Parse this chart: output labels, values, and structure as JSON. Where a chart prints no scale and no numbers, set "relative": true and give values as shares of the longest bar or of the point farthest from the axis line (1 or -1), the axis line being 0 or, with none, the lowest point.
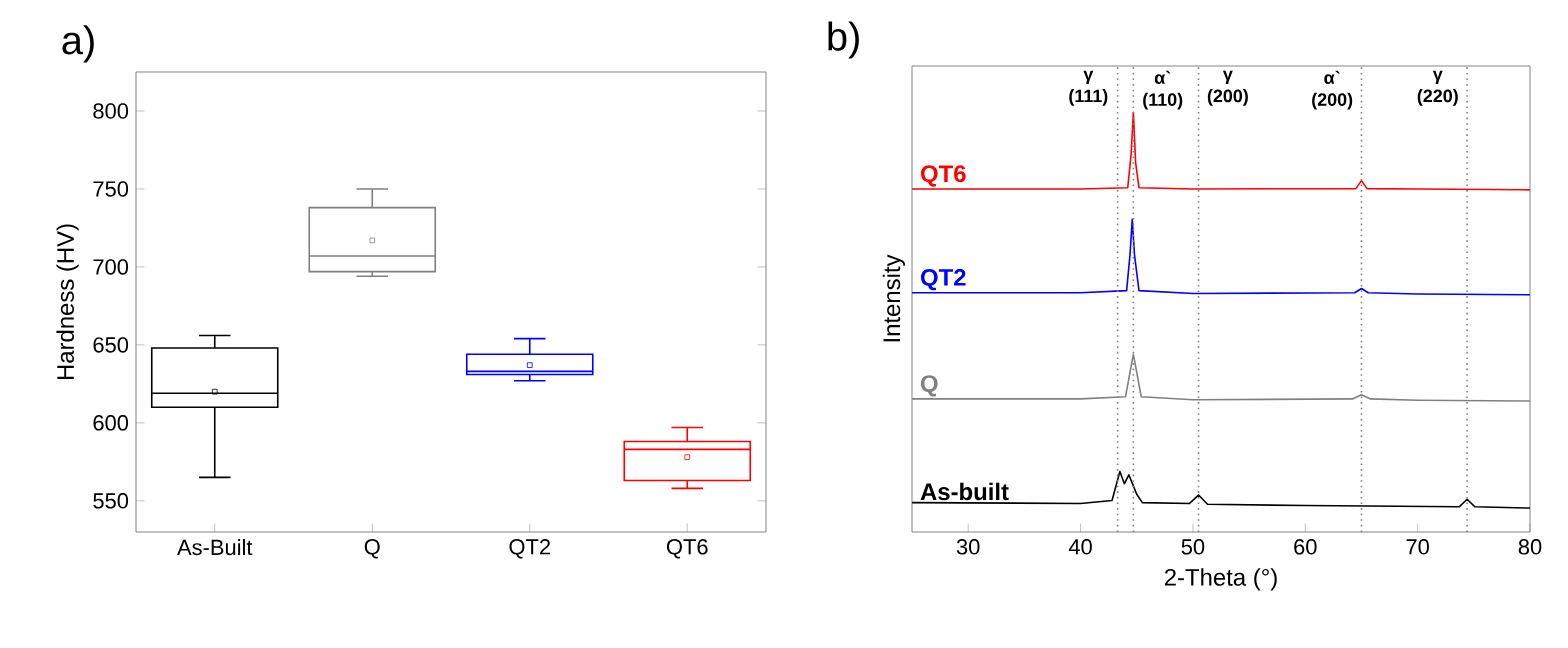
{
  "chart_data": [
    {
      "type": "box",
      "ylabel": "Hardness (HV)",
      "annotations": [
        "a)"
      ],
      "categories": [
        "As-Built",
        "Q",
        "QT2",
        "QT6"
      ],
      "colors": [
        "#000000",
        "#808080",
        "#0000ff",
        "#ff0000"
      ],
      "boxes": [
        {
          "low": 565,
          "q1": 610,
          "median": 619,
          "q3": 648,
          "high": 656,
          "mean": 620
        },
        {
          "low": 694,
          "q1": 697,
          "median": 707,
          "q3": 738,
          "high": 750,
          "mean": 717
        },
        {
          "low": 627,
          "q1": 631,
          "median": 633,
          "q3": 644,
          "high": 654,
          "mean": 637
        },
        {
          "low": 558,
          "q1": 563,
          "median": 583,
          "q3": 588,
          "high": 597,
          "mean": 578
        }
      ],
      "ylim": [
        530,
        825
      ],
      "yticks": [
        550,
        600,
        650,
        700,
        750,
        800
      ]
    },
    {
      "type": "line",
      "xlabel": "2-Theta (°)",
      "ylabel": "Intensity",
      "annotations": [
        "b)"
      ],
      "relative": true,
      "xlim": [
        25,
        80
      ],
      "xticks": [
        30,
        40,
        50,
        60,
        70,
        80
      ],
      "marker": "none",
      "line_style": "solid",
      "series": [
        {
          "name": "QT6",
          "color": "#ff0000",
          "x": [
            25,
            40,
            44.2,
            44.5,
            44.7,
            44.9,
            45.2,
            50,
            64.5,
            65,
            65.5,
            70,
            80
          ],
          "values": [
            0.817,
            0.817,
            0.82,
            0.9,
            1.0,
            0.88,
            0.82,
            0.817,
            0.818,
            0.837,
            0.818,
            0.817,
            0.815
          ]
        },
        {
          "name": "QT2",
          "color": "#0000ff",
          "x": [
            25,
            40,
            44.1,
            44.4,
            44.6,
            44.8,
            45.2,
            50,
            64.4,
            65,
            65.6,
            70,
            80
          ],
          "values": [
            0.57,
            0.57,
            0.575,
            0.66,
            0.745,
            0.66,
            0.575,
            0.568,
            0.57,
            0.58,
            0.57,
            0.567,
            0.565
          ]
        },
        {
          "name": "Q",
          "color": "#808080",
          "x": [
            25,
            40,
            44.0,
            44.4,
            44.7,
            45.0,
            45.4,
            50,
            64.2,
            65,
            65.8,
            70,
            80
          ],
          "values": [
            0.317,
            0.317,
            0.322,
            0.38,
            0.423,
            0.38,
            0.322,
            0.315,
            0.317,
            0.327,
            0.317,
            0.314,
            0.312
          ]
        },
        {
          "name": "As-built",
          "color": "#000000",
          "x": [
            25,
            40,
            42.8,
            43.5,
            43.9,
            44.3,
            45.0,
            45.5,
            49.7,
            50.5,
            51.3,
            60,
            73.7,
            74.4,
            75.1,
            80
          ],
          "values": [
            0.07,
            0.068,
            0.075,
            0.144,
            0.115,
            0.136,
            0.09,
            0.07,
            0.068,
            0.088,
            0.066,
            0.063,
            0.06,
            0.078,
            0.06,
            0.057
          ]
        }
      ],
      "ref_lines": [
        {
          "axis": "x",
          "value": 43.3,
          "label": "γ (111)",
          "color": "#808080",
          "line_style": "dotted"
        },
        {
          "axis": "x",
          "value": 44.7,
          "label": "α` (110)",
          "color": "#808080",
          "line_style": "dotted"
        },
        {
          "axis": "x",
          "value": 50.5,
          "label": "γ (200)",
          "color": "#808080",
          "line_style": "dotted"
        },
        {
          "axis": "x",
          "value": 65.0,
          "label": "α` (200)",
          "color": "#808080",
          "line_style": "dotted"
        },
        {
          "axis": "x",
          "value": 74.4,
          "label": "γ (220)",
          "color": "#808080",
          "line_style": "dotted"
        }
      ]
    }
  ]
}
